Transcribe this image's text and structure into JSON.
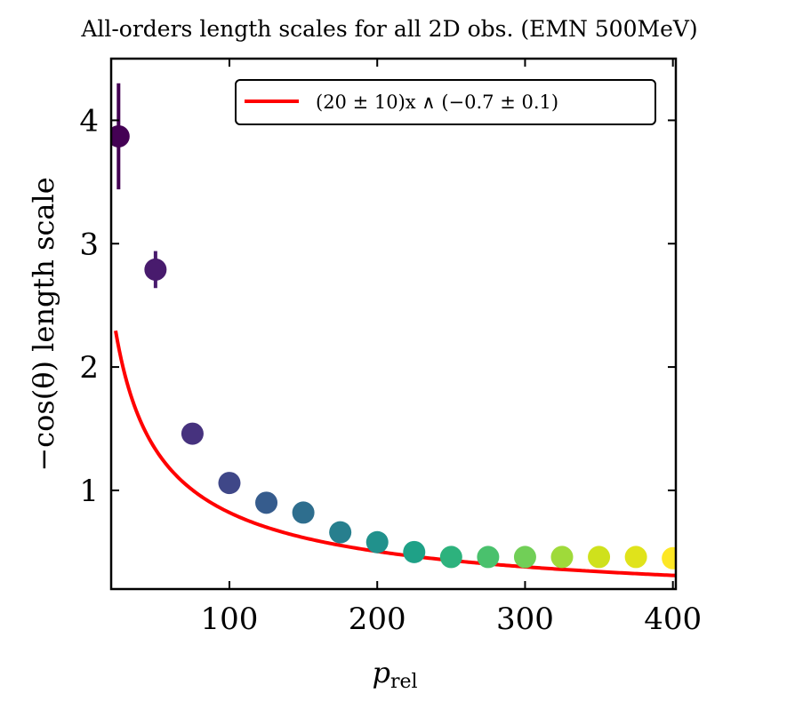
{
  "chart_data": {
    "type": "scatter",
    "title": "All-orders length scales for all 2D obs. (EMN 500MeV)",
    "xlabel_main": "p",
    "xlabel_sub": "rel",
    "ylabel": "−cos(θ) length scale",
    "xlim": [
      20,
      402
    ],
    "ylim": [
      0.2,
      4.5
    ],
    "xticks": [
      100,
      200,
      300,
      400
    ],
    "yticks": [
      1,
      2,
      3,
      4
    ],
    "grid": false,
    "legend_position": "top-right",
    "points": [
      {
        "x": 25,
        "y": 3.87,
        "err": 0.43,
        "color": "#440154"
      },
      {
        "x": 50,
        "y": 2.79,
        "err": 0.15,
        "color": "#481b6d"
      },
      {
        "x": 75,
        "y": 1.46,
        "err": 0.04,
        "color": "#46327e"
      },
      {
        "x": 100,
        "y": 1.06,
        "err": 0.08,
        "color": "#3f4788"
      },
      {
        "x": 125,
        "y": 0.9,
        "err": 0.03,
        "color": "#365c8d"
      },
      {
        "x": 150,
        "y": 0.82,
        "err": 0.03,
        "color": "#2e6e8e"
      },
      {
        "x": 175,
        "y": 0.66,
        "err": 0.02,
        "color": "#277f8e"
      },
      {
        "x": 200,
        "y": 0.58,
        "err": 0.02,
        "color": "#21918c"
      },
      {
        "x": 225,
        "y": 0.5,
        "err": 0.02,
        "color": "#1fa187"
      },
      {
        "x": 250,
        "y": 0.46,
        "err": 0.02,
        "color": "#2db27d"
      },
      {
        "x": 275,
        "y": 0.46,
        "err": 0.02,
        "color": "#4ac16d"
      },
      {
        "x": 300,
        "y": 0.46,
        "err": 0.02,
        "color": "#71cf57"
      },
      {
        "x": 325,
        "y": 0.46,
        "err": 0.02,
        "color": "#9fda3a"
      },
      {
        "x": 350,
        "y": 0.46,
        "err": 0.02,
        "color": "#cfe11c"
      },
      {
        "x": 375,
        "y": 0.46,
        "err": 0.02,
        "color": "#e0e31b"
      },
      {
        "x": 400,
        "y": 0.45,
        "err": 0.02,
        "color": "#fde725"
      }
    ],
    "fit_series": {
      "name": "(20 ± 10)x ∧ (−0.7 ± 0.1)",
      "color": "#ff0000",
      "coefficient": 20.6,
      "exponent": -0.7,
      "x_start": 23,
      "x_end": 402
    }
  }
}
